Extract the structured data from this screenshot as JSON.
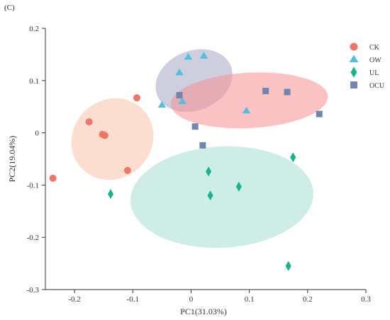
{
  "panel_label": "(C)",
  "chart_data": {
    "type": "scatter",
    "xlabel": "PC1(31.03%)",
    "ylabel": "PC2(19.04%)",
    "xlim": [
      -0.25,
      0.3
    ],
    "ylim": [
      -0.3,
      0.2
    ],
    "x_ticks": [
      -0.2,
      -0.1,
      0,
      0.1,
      0.2,
      0.3
    ],
    "x_tick_labels": [
      "-0.2",
      "-0.1",
      "0",
      "0.1",
      "0.2",
      "0.3"
    ],
    "y_ticks": [
      0.2,
      0.1,
      0,
      -0.1,
      -0.2,
      -0.3
    ],
    "y_tick_labels": [
      "0.2",
      "0.1",
      "0",
      "-0.1",
      "-0.2",
      "-0.3"
    ],
    "grid": false,
    "legend_position": "top-right",
    "series": [
      {
        "name": "CK",
        "marker": "circle",
        "color": "#F07668",
        "ellipse_color": "#F9C2A9",
        "points": [
          [
            -0.237,
            -0.087
          ],
          [
            -0.175,
            0.021
          ],
          [
            -0.152,
            -0.003
          ],
          [
            -0.148,
            -0.005
          ],
          [
            -0.109,
            -0.072
          ],
          [
            -0.093,
            0.067
          ]
        ],
        "ellipse": {
          "cx": -0.135,
          "cy": -0.012,
          "rx": 0.073,
          "ry": 0.075,
          "angle": -44
        }
      },
      {
        "name": "OW",
        "marker": "triangle",
        "color": "#4FC1DC",
        "ellipse_color": "#A6A7C3",
        "points": [
          [
            -0.05,
            0.053
          ],
          [
            -0.02,
            0.115
          ],
          [
            -0.015,
            0.06
          ],
          [
            -0.005,
            0.145
          ],
          [
            0.022,
            0.147
          ],
          [
            0.095,
            0.042
          ]
        ],
        "ellipse": {
          "cx": 0.005,
          "cy": 0.1,
          "rx": 0.068,
          "ry": 0.057,
          "angle": -22
        }
      },
      {
        "name": "UL",
        "marker": "diamond",
        "color": "#13B58E",
        "ellipse_color": "#A6DFD4",
        "points": [
          [
            -0.138,
            -0.117
          ],
          [
            0.03,
            -0.074
          ],
          [
            0.033,
            -0.12
          ],
          [
            0.082,
            -0.103
          ],
          [
            0.175,
            -0.047
          ],
          [
            0.167,
            -0.255
          ]
        ],
        "ellipse": {
          "cx": 0.053,
          "cy": -0.123,
          "rx": 0.157,
          "ry": 0.097,
          "angle": -3
        }
      },
      {
        "name": "OCU",
        "marker": "square",
        "color": "#6F86AE",
        "ellipse_color": "#F58F91",
        "points": [
          [
            -0.02,
            0.072
          ],
          [
            0.007,
            0.012
          ],
          [
            0.02,
            -0.024
          ],
          [
            0.128,
            0.08
          ],
          [
            0.165,
            0.078
          ],
          [
            0.22,
            0.036
          ]
        ],
        "ellipse": {
          "cx": 0.1,
          "cy": 0.062,
          "rx": 0.135,
          "ry": 0.053,
          "angle": -3
        }
      }
    ]
  }
}
